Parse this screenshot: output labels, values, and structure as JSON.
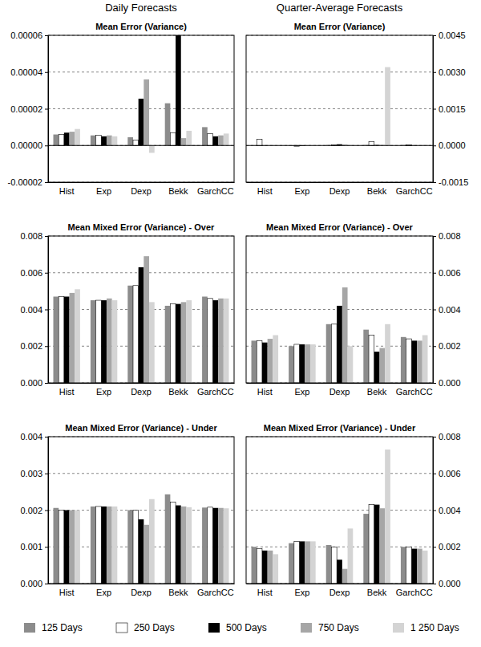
{
  "column_titles": [
    "Daily Forecasts",
    "Quarter-Average Forecasts"
  ],
  "chart_data": [
    {
      "type": "bar",
      "title": "Mean Error (Variance)",
      "legend": "bottom",
      "categories": [
        "Hist",
        "Exp",
        "Dexp",
        "Bekk",
        "GarchCC"
      ],
      "series": [
        {
          "name": "125 Days",
          "color": "#8c8c8c",
          "values": [
            6e-06,
            5.5e-06,
            4.5e-06,
            2.3e-05,
            1e-05
          ]
        },
        {
          "name": "250 Days",
          "color": "#ffffff",
          "values": [
            6e-06,
            5.5e-06,
            3e-06,
            7e-06,
            6.5e-06
          ]
        },
        {
          "name": "500 Days",
          "color": "#000000",
          "values": [
            7e-06,
            5e-06,
            2.55e-05,
            6e-05,
            5e-06
          ]
        },
        {
          "name": "750 Days",
          "color": "#a6a6a6",
          "values": [
            7.5e-06,
            5.5e-06,
            3.6e-05,
            4e-06,
            5.5e-06
          ]
        },
        {
          "name": "1 250 Days",
          "color": "#d4d4d4",
          "values": [
            9e-06,
            5e-06,
            -4e-06,
            8e-06,
            6.5e-06
          ]
        }
      ],
      "ylim": [
        -2e-05,
        6e-05
      ],
      "yticks": [
        -2e-05,
        {
          "value": 0,
          "label": "0.00000"
        },
        2e-05,
        4e-05,
        6e-05
      ],
      "grid": true
    },
    {
      "type": "bar",
      "title": "Mean Error (Variance)",
      "categories": [
        "Hist",
        "Exp",
        "Dexp",
        "Bekk",
        "GarchCC"
      ],
      "series": [
        {
          "name": "125 Days",
          "color": "#8c8c8c",
          "values": [
            1e-05,
            -2e-05,
            2e-05,
            2e-05,
            2e-05
          ]
        },
        {
          "name": "250 Days",
          "color": "#ffffff",
          "values": [
            0.00025,
            -3e-05,
            3e-05,
            0.00015,
            2e-05
          ]
        },
        {
          "name": "500 Days",
          "color": "#000000",
          "values": [
            1e-05,
            -2e-05,
            5e-05,
            2e-05,
            1e-05
          ]
        },
        {
          "name": "750 Days",
          "color": "#a6a6a6",
          "values": [
            1e-05,
            -2e-05,
            4e-05,
            2e-05,
            1e-05
          ]
        },
        {
          "name": "1 250 Days",
          "color": "#d4d4d4",
          "values": [
            1e-05,
            -2e-05,
            2e-05,
            0.0032,
            2e-05
          ]
        }
      ],
      "ylim": [
        -0.0015,
        0.0045
      ],
      "yticks": [
        -0.0015,
        {
          "value": 0,
          "label": "0.0000"
        },
        0.0015,
        {
          "value": 0.003,
          "label": "0.0030"
        },
        0.0045
      ],
      "grid": true
    },
    {
      "type": "bar",
      "title": "Mean Mixed Error (Variance) - Over",
      "categories": [
        "Hist",
        "Exp",
        "Dexp",
        "Bekk",
        "GarchCC"
      ],
      "series": [
        {
          "name": "125 Days",
          "color": "#8c8c8c",
          "values": [
            0.0047,
            0.0045,
            0.0053,
            0.0042,
            0.0047
          ]
        },
        {
          "name": "250 Days",
          "color": "#ffffff",
          "values": [
            0.0047,
            0.0045,
            0.0053,
            0.0043,
            0.0046
          ]
        },
        {
          "name": "500 Days",
          "color": "#000000",
          "values": [
            0.0047,
            0.0045,
            0.0063,
            0.0043,
            0.0045
          ]
        },
        {
          "name": "750 Days",
          "color": "#a6a6a6",
          "values": [
            0.0049,
            0.0046,
            0.0069,
            0.0044,
            0.0046
          ]
        },
        {
          "name": "1 250 Days",
          "color": "#d4d4d4",
          "values": [
            0.0051,
            0.0045,
            0.0044,
            0.0045,
            0.0046
          ]
        }
      ],
      "ylim": [
        0,
        0.008
      ],
      "yticks": [
        {
          "value": 0,
          "label": "0.000"
        },
        0.002,
        0.004,
        0.006,
        0.008
      ],
      "grid": true
    },
    {
      "type": "bar",
      "title": "Mean Mixed Error (Variance) - Over",
      "categories": [
        "Hist",
        "Exp",
        "Dexp",
        "Bekk",
        "GarchCC"
      ],
      "series": [
        {
          "name": "125 Days",
          "color": "#8c8c8c",
          "values": [
            0.0023,
            0.002,
            0.0032,
            0.0029,
            0.0025
          ]
        },
        {
          "name": "250 Days",
          "color": "#ffffff",
          "values": [
            0.0023,
            0.0021,
            0.0032,
            0.0026,
            0.0024
          ]
        },
        {
          "name": "500 Days",
          "color": "#000000",
          "values": [
            0.0022,
            0.0021,
            0.0042,
            0.0017,
            0.0023
          ]
        },
        {
          "name": "750 Days",
          "color": "#a6a6a6",
          "values": [
            0.0024,
            0.0021,
            0.0052,
            0.0019,
            0.0023
          ]
        },
        {
          "name": "1 250 Days",
          "color": "#d4d4d4",
          "values": [
            0.0026,
            0.0021,
            0.002,
            0.0032,
            0.0026
          ]
        }
      ],
      "ylim": [
        0,
        0.008
      ],
      "yticks": [
        {
          "value": 0,
          "label": "0.000"
        },
        0.002,
        0.004,
        0.006,
        0.008
      ],
      "grid": true
    },
    {
      "type": "bar",
      "title": "Mean Mixed Error (Variance) - Under",
      "categories": [
        "Hist",
        "Exp",
        "Dexp",
        "Bekk",
        "GarchCC"
      ],
      "series": [
        {
          "name": "125 Days",
          "color": "#8c8c8c",
          "values": [
            0.00206,
            0.0021,
            0.002,
            0.00243,
            0.00207
          ]
        },
        {
          "name": "250 Days",
          "color": "#ffffff",
          "values": [
            0.002,
            0.0021,
            0.002,
            0.00222,
            0.00208
          ]
        },
        {
          "name": "500 Days",
          "color": "#000000",
          "values": [
            0.002,
            0.0021,
            0.00175,
            0.00213,
            0.00206
          ]
        },
        {
          "name": "750 Days",
          "color": "#a6a6a6",
          "values": [
            0.002,
            0.0021,
            0.0016,
            0.0021,
            0.00206
          ]
        },
        {
          "name": "1 250 Days",
          "color": "#d4d4d4",
          "values": [
            0.002,
            0.0021,
            0.0023,
            0.00208,
            0.00205
          ]
        }
      ],
      "ylim": [
        0,
        0.004
      ],
      "yticks": [
        {
          "value": 0,
          "label": "0.000"
        },
        0.001,
        0.002,
        0.003,
        0.004
      ],
      "grid": true
    },
    {
      "type": "bar",
      "title": "Mean Mixed Error (Variance) - Under",
      "categories": [
        "Hist",
        "Exp",
        "Dexp",
        "Bekk",
        "GarchCC"
      ],
      "series": [
        {
          "name": "125 Days",
          "color": "#8c8c8c",
          "values": [
            0.002,
            0.0022,
            0.0021,
            0.0038,
            0.002
          ]
        },
        {
          "name": "250 Days",
          "color": "#ffffff",
          "values": [
            0.0019,
            0.0023,
            0.002,
            0.0043,
            0.002
          ]
        },
        {
          "name": "500 Days",
          "color": "#000000",
          "values": [
            0.0018,
            0.0023,
            0.0013,
            0.0043,
            0.0019
          ]
        },
        {
          "name": "750 Days",
          "color": "#a6a6a6",
          "values": [
            0.0018,
            0.0023,
            0.0008,
            0.0041,
            0.0019
          ]
        },
        {
          "name": "1 250 Days",
          "color": "#d4d4d4",
          "values": [
            0.0016,
            0.0023,
            0.003,
            0.0073,
            0.0018
          ]
        }
      ],
      "ylim": [
        0,
        0.008
      ],
      "yticks": [
        {
          "value": 0,
          "label": "0.000"
        },
        0.002,
        0.004,
        0.006,
        0.008
      ],
      "grid": true
    }
  ]
}
